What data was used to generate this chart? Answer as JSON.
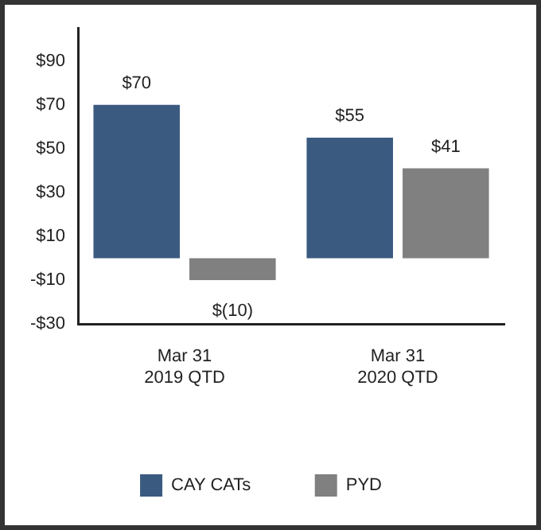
{
  "chart_data": {
    "type": "bar",
    "categories": [
      "Mar 31\n2019 QTD",
      "Mar 31\n2020 QTD"
    ],
    "series": [
      {
        "name": "CAY CATs",
        "color": "#3b5a80",
        "values": [
          70,
          55
        ],
        "value_labels": [
          "$70",
          "$55"
        ]
      },
      {
        "name": "PYD",
        "color": "#808080",
        "values": [
          -10,
          41
        ],
        "value_labels": [
          "$(10)",
          "$41"
        ]
      }
    ],
    "ylim": [
      -30,
      105
    ],
    "yticks": [
      {
        "value": -30,
        "label": "-$30"
      },
      {
        "value": -10,
        "label": "-$10"
      },
      {
        "value": 10,
        "label": "$10"
      },
      {
        "value": 30,
        "label": "$30"
      },
      {
        "value": 50,
        "label": "$50"
      },
      {
        "value": 70,
        "label": "$70"
      },
      {
        "value": 90,
        "label": "$90"
      }
    ],
    "grid": false,
    "legend": "bottom"
  }
}
